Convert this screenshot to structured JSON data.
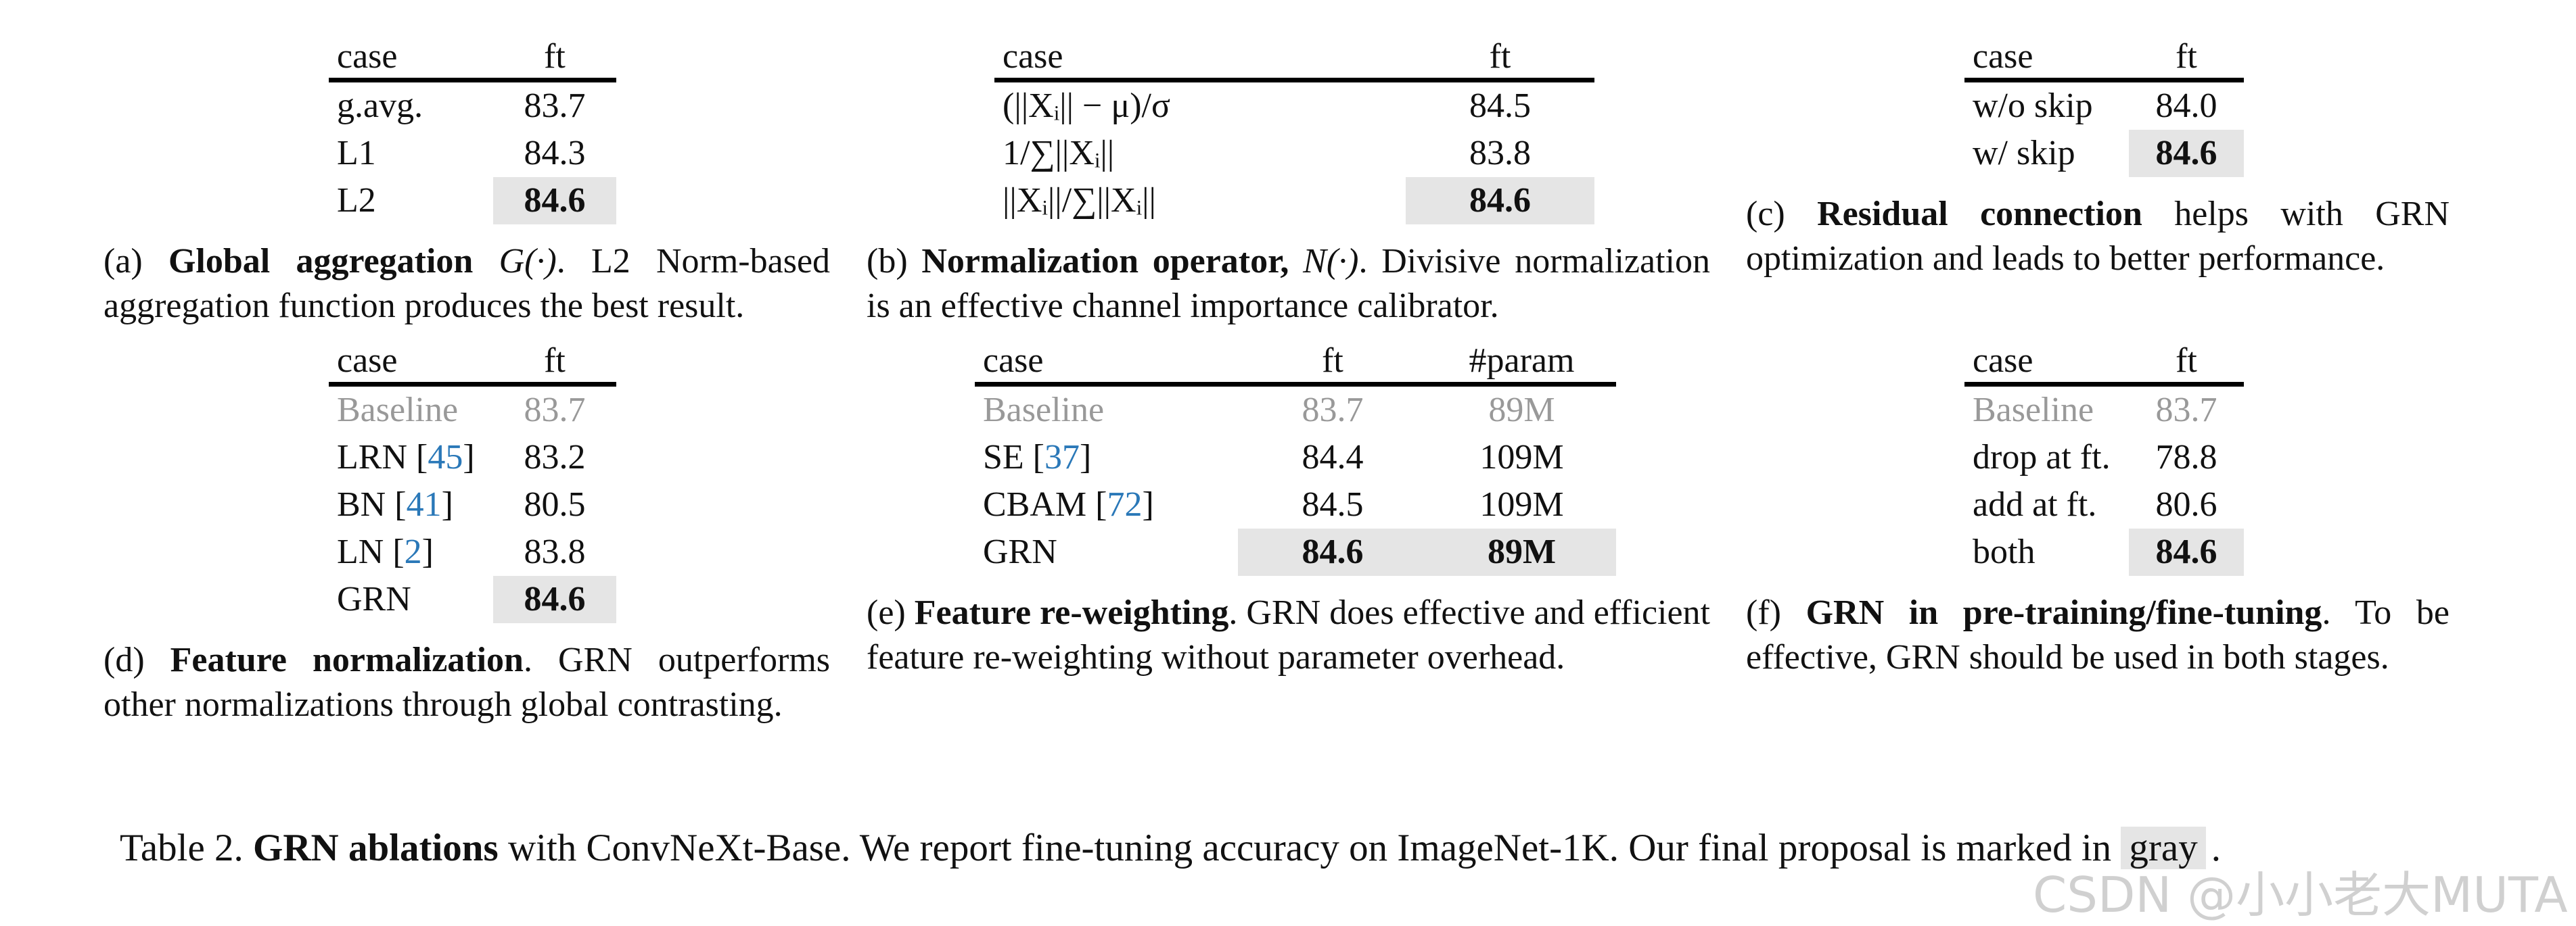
{
  "panels": [
    {
      "header": [
        "case",
        "ft"
      ],
      "rows": [
        [
          "g.avg.",
          "83.7"
        ],
        [
          "L1",
          "84.3"
        ],
        [
          "L2",
          "84.6"
        ]
      ],
      "highlight_row": 2,
      "caption": [
        {
          "text": "(a) "
        },
        {
          "text": "Global aggregation",
          "style": "bold"
        },
        {
          "text": " "
        },
        {
          "text": "G(·)",
          "style": "italic"
        },
        {
          "text": ".  L2 Norm-based aggregation function produces the best result."
        }
      ]
    },
    {
      "header": [
        "case",
        "ft"
      ],
      "rows": [
        [
          "(||Xᵢ|| − μ)/σ",
          "84.5"
        ],
        [
          "1/∑||Xᵢ||",
          "83.8"
        ],
        [
          "||Xᵢ||/∑||Xᵢ||",
          "84.6"
        ]
      ],
      "highlight_row": 2,
      "caption": [
        {
          "text": "(b) "
        },
        {
          "text": "Normalization operator, ",
          "style": "bold"
        },
        {
          "text": "N(·)",
          "style": "italic"
        },
        {
          "text": ". Divisive normalization is an effective channel importance calibrator."
        }
      ]
    },
    {
      "header": [
        "case",
        "ft"
      ],
      "rows": [
        [
          "w/o skip",
          "84.0"
        ],
        [
          "w/ skip",
          "84.6"
        ]
      ],
      "highlight_row": 1,
      "caption": [
        {
          "text": "(c) "
        },
        {
          "text": "Residual connection",
          "style": "bold"
        },
        {
          "text": " helps with GRN optimization and leads to better performance."
        }
      ]
    },
    {
      "header": [
        "case",
        "ft"
      ],
      "rows": [
        [
          "Baseline",
          "83.7"
        ],
        [
          [
            {
              "text": "LRN ["
            },
            {
              "text": "45",
              "style": "cite"
            },
            {
              "text": "]"
            }
          ],
          "83.2"
        ],
        [
          [
            {
              "text": "BN ["
            },
            {
              "text": "41",
              "style": "cite"
            },
            {
              "text": "]"
            }
          ],
          "80.5"
        ],
        [
          [
            {
              "text": "LN ["
            },
            {
              "text": "2",
              "style": "cite"
            },
            {
              "text": "]"
            }
          ],
          "83.8"
        ],
        [
          "GRN",
          "84.6"
        ]
      ],
      "baseline_row": 0,
      "highlight_row": 4,
      "caption": [
        {
          "text": "(d) "
        },
        {
          "text": "Feature normalization",
          "style": "bold"
        },
        {
          "text": ".  GRN outperforms other normalizations through global contrasting."
        }
      ]
    },
    {
      "header": [
        "case",
        "ft",
        "#param"
      ],
      "rows": [
        [
          "Baseline",
          "83.7",
          "89M"
        ],
        [
          [
            {
              "text": "SE ["
            },
            {
              "text": "37",
              "style": "cite"
            },
            {
              "text": "]"
            }
          ],
          "84.4",
          "109M"
        ],
        [
          [
            {
              "text": "CBAM ["
            },
            {
              "text": "72",
              "style": "cite"
            },
            {
              "text": "]"
            }
          ],
          "84.5",
          "109M"
        ],
        [
          "GRN",
          "84.6",
          "89M"
        ]
      ],
      "baseline_row": 0,
      "highlight_row": 3,
      "caption": [
        {
          "text": "(e) "
        },
        {
          "text": "Feature re-weighting",
          "style": "bold"
        },
        {
          "text": ". GRN does effective and efficient feature re-weighting without parameter overhead."
        }
      ]
    },
    {
      "header": [
        "case",
        "ft"
      ],
      "rows": [
        [
          "Baseline",
          "83.7"
        ],
        [
          "drop at ft.",
          "78.8"
        ],
        [
          "add at ft.",
          "80.6"
        ],
        [
          "both",
          "84.6"
        ]
      ],
      "baseline_row": 0,
      "highlight_row": 3,
      "caption": [
        {
          "text": "(f) "
        },
        {
          "text": "GRN in pre-training/fine-tuning",
          "style": "bold"
        },
        {
          "text": ".  To be effective, GRN should be used in both stages."
        }
      ]
    }
  ],
  "main_caption": [
    {
      "text": "Table 2. "
    },
    {
      "text": "GRN ablations",
      "style": "bold"
    },
    {
      "text": " with ConvNeXt-Base. We report fine-tuning accuracy on ImageNet-1K. Our final proposal is marked in "
    },
    {
      "text": "gray",
      "style": "graybox"
    },
    {
      "text": "."
    }
  ],
  "watermark": "CSDN @小小老大MUTA"
}
